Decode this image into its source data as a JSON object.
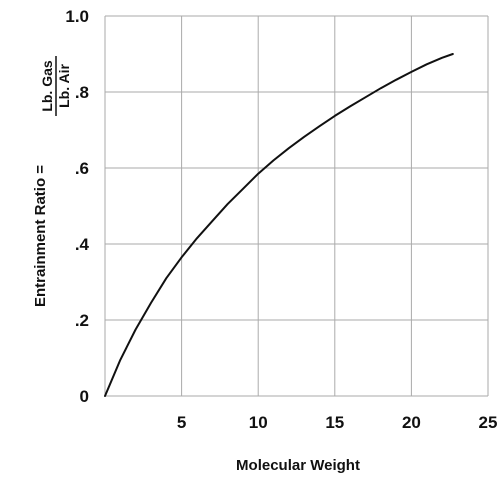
{
  "chart_data": {
    "type": "line",
    "title": "",
    "xlabel": "Molecular Weight",
    "ylabel": {
      "prefix": "Entrainment Ratio =",
      "numerator": "Lb. Gas",
      "denominator": "Lb. Air"
    },
    "xlim": [
      0,
      25
    ],
    "ylim": [
      0,
      1.0
    ],
    "x_ticks": [
      {
        "value": 5,
        "label": "5"
      },
      {
        "value": 10,
        "label": "10"
      },
      {
        "value": 15,
        "label": "15"
      },
      {
        "value": 20,
        "label": "20"
      },
      {
        "value": 25,
        "label": "25"
      }
    ],
    "y_ticks": [
      {
        "value": 0,
        "label": "0"
      },
      {
        "value": 0.2,
        "label": ".2"
      },
      {
        "value": 0.4,
        "label": ".4"
      },
      {
        "value": 0.6,
        "label": ".6"
      },
      {
        "value": 0.8,
        "label": ".8"
      },
      {
        "value": 1.0,
        "label": "1.0"
      }
    ],
    "grid": true,
    "line_color": "#111111",
    "grid_color": "#aaaaaa",
    "series": [
      {
        "x": [
          0,
          1,
          2,
          3,
          4,
          5,
          6,
          7,
          8,
          9,
          10,
          11,
          12,
          13,
          14,
          15,
          16,
          17,
          18,
          19,
          20,
          21,
          22,
          22.7
        ],
        "y": [
          0,
          0.095,
          0.175,
          0.245,
          0.31,
          0.365,
          0.415,
          0.46,
          0.505,
          0.545,
          0.585,
          0.62,
          0.652,
          0.682,
          0.71,
          0.737,
          0.762,
          0.786,
          0.81,
          0.832,
          0.853,
          0.873,
          0.89,
          0.9
        ]
      }
    ]
  }
}
